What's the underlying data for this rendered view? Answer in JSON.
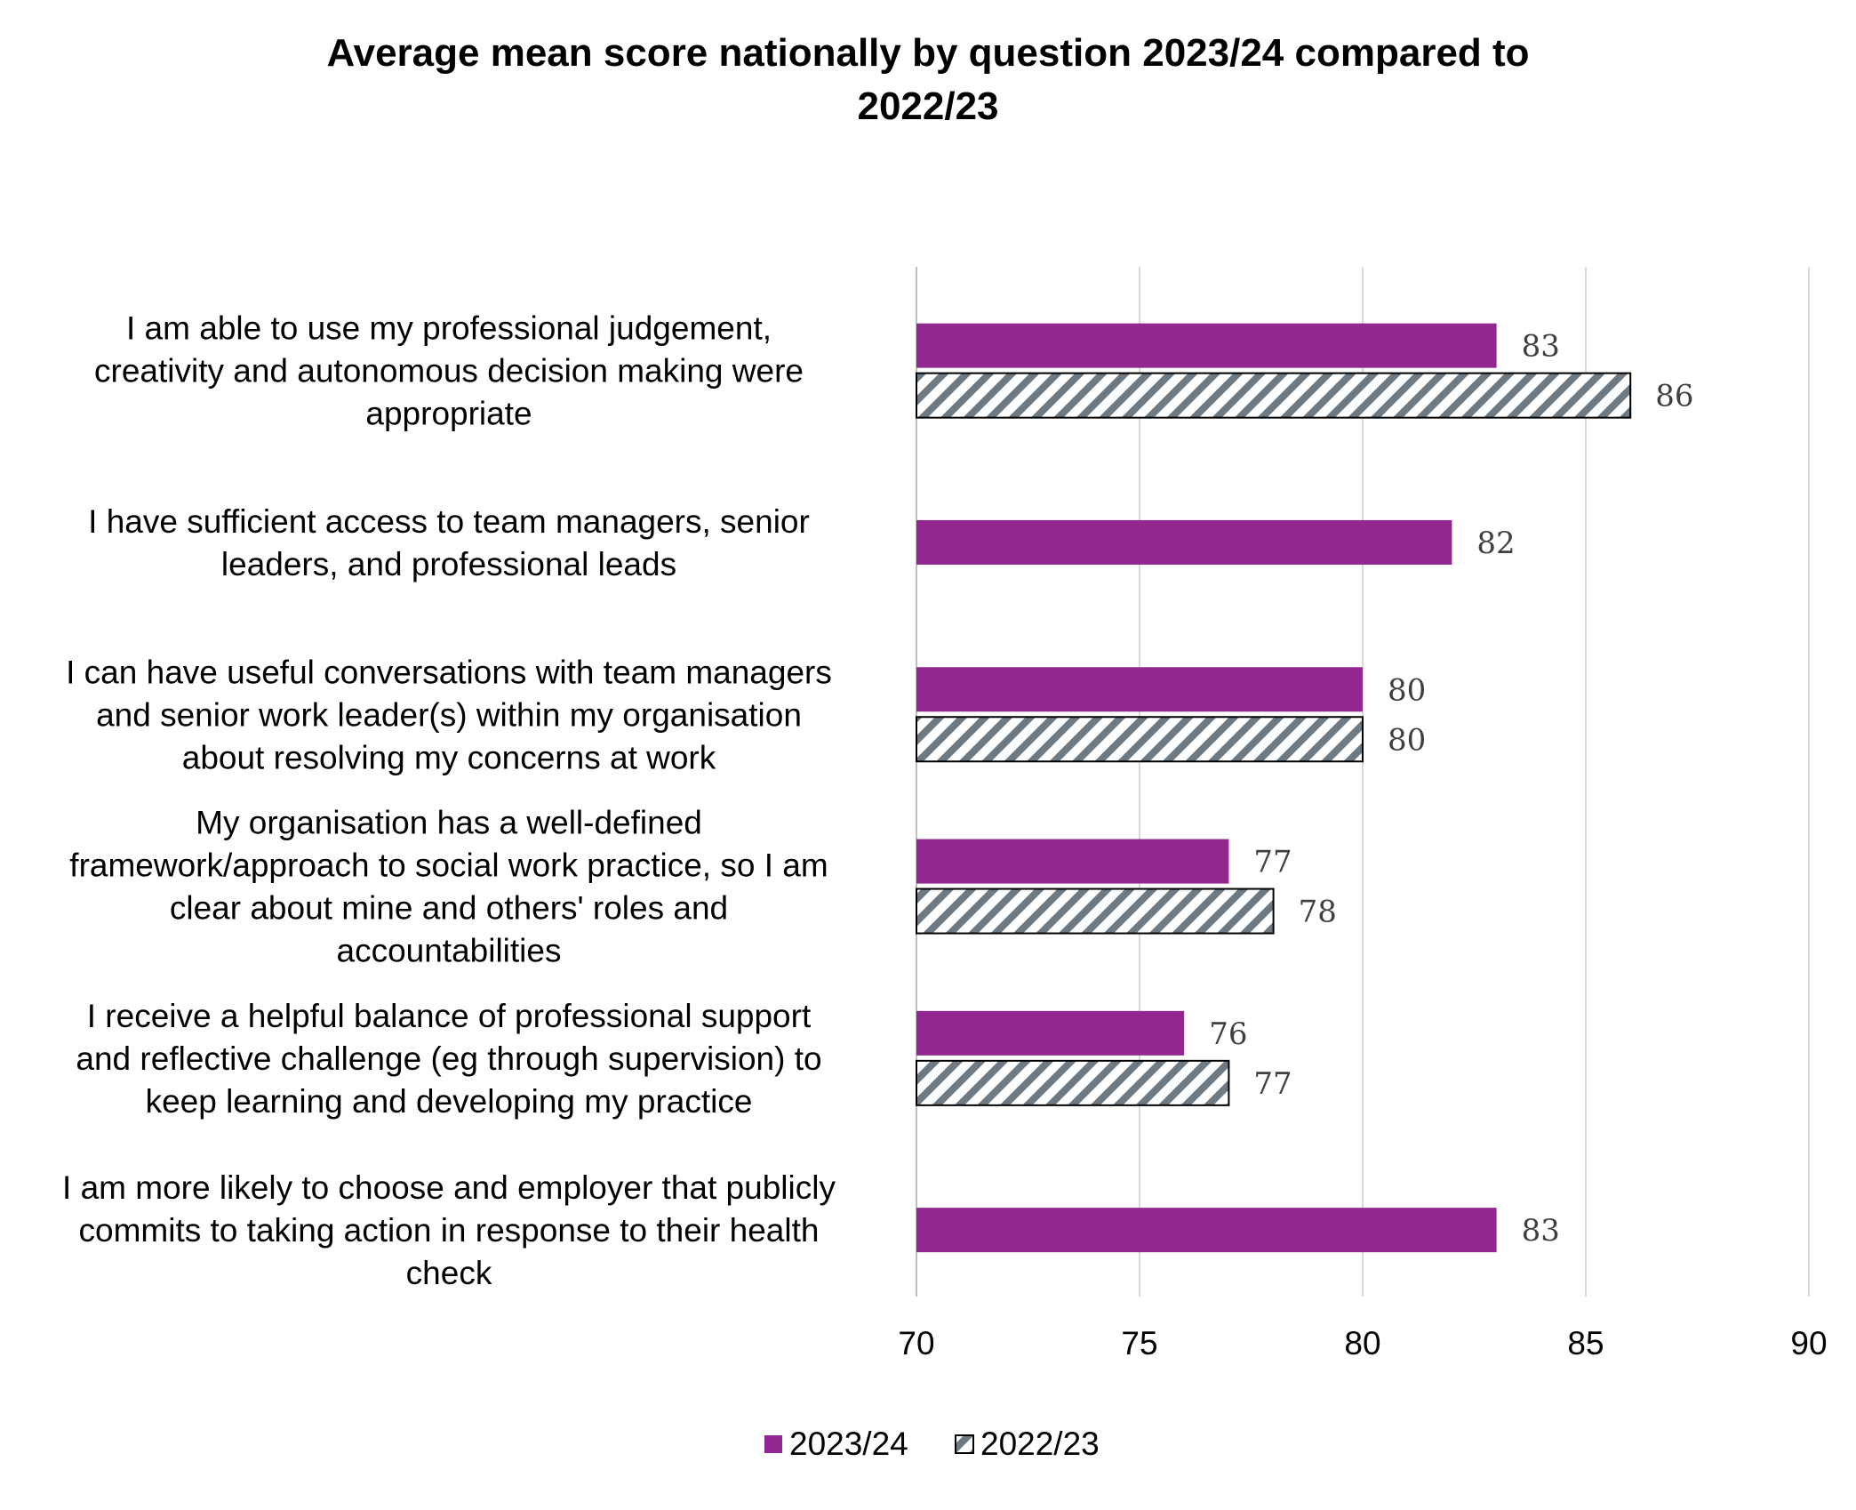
{
  "chart_data": {
    "type": "bar",
    "orientation": "horizontal",
    "title_lines": [
      "Average mean score nationally by question 2023/24 compared to",
      "2022/23"
    ],
    "categories": [
      [
        "I am able to use my professional judgement,",
        "creativity and autonomous decision making were",
        "appropriate"
      ],
      [
        "I have sufficient access to team managers, senior",
        "leaders, and professional leads"
      ],
      [
        "I can have useful conversations with team managers",
        "and senior work leader(s) within my organisation",
        "about resolving my concerns at work"
      ],
      [
        "My organisation has a well-defined",
        "framework/approach to social work practice, so I am",
        "clear about mine and others' roles and",
        "accountabilities"
      ],
      [
        "I receive a helpful balance of professional support",
        "and reflective challenge (eg through supervision) to",
        "keep learning and developing my practice"
      ],
      [
        "I am more likely to choose and employer that publicly",
        "commits to taking action in response to their health",
        "check"
      ]
    ],
    "series": [
      {
        "name": "2023/24",
        "values": [
          83,
          82,
          80,
          77,
          76,
          83
        ],
        "color": "#92278f",
        "pattern": "solid"
      },
      {
        "name": "2022/23",
        "values": [
          86,
          null,
          80,
          78,
          77,
          null
        ],
        "color": "#6d7a84",
        "pattern": "diagonal-hatch"
      }
    ],
    "xlim": [
      70,
      90
    ],
    "xticks": [
      70,
      75,
      80,
      85,
      90
    ],
    "grid": true,
    "legend_position": "bottom-center"
  }
}
